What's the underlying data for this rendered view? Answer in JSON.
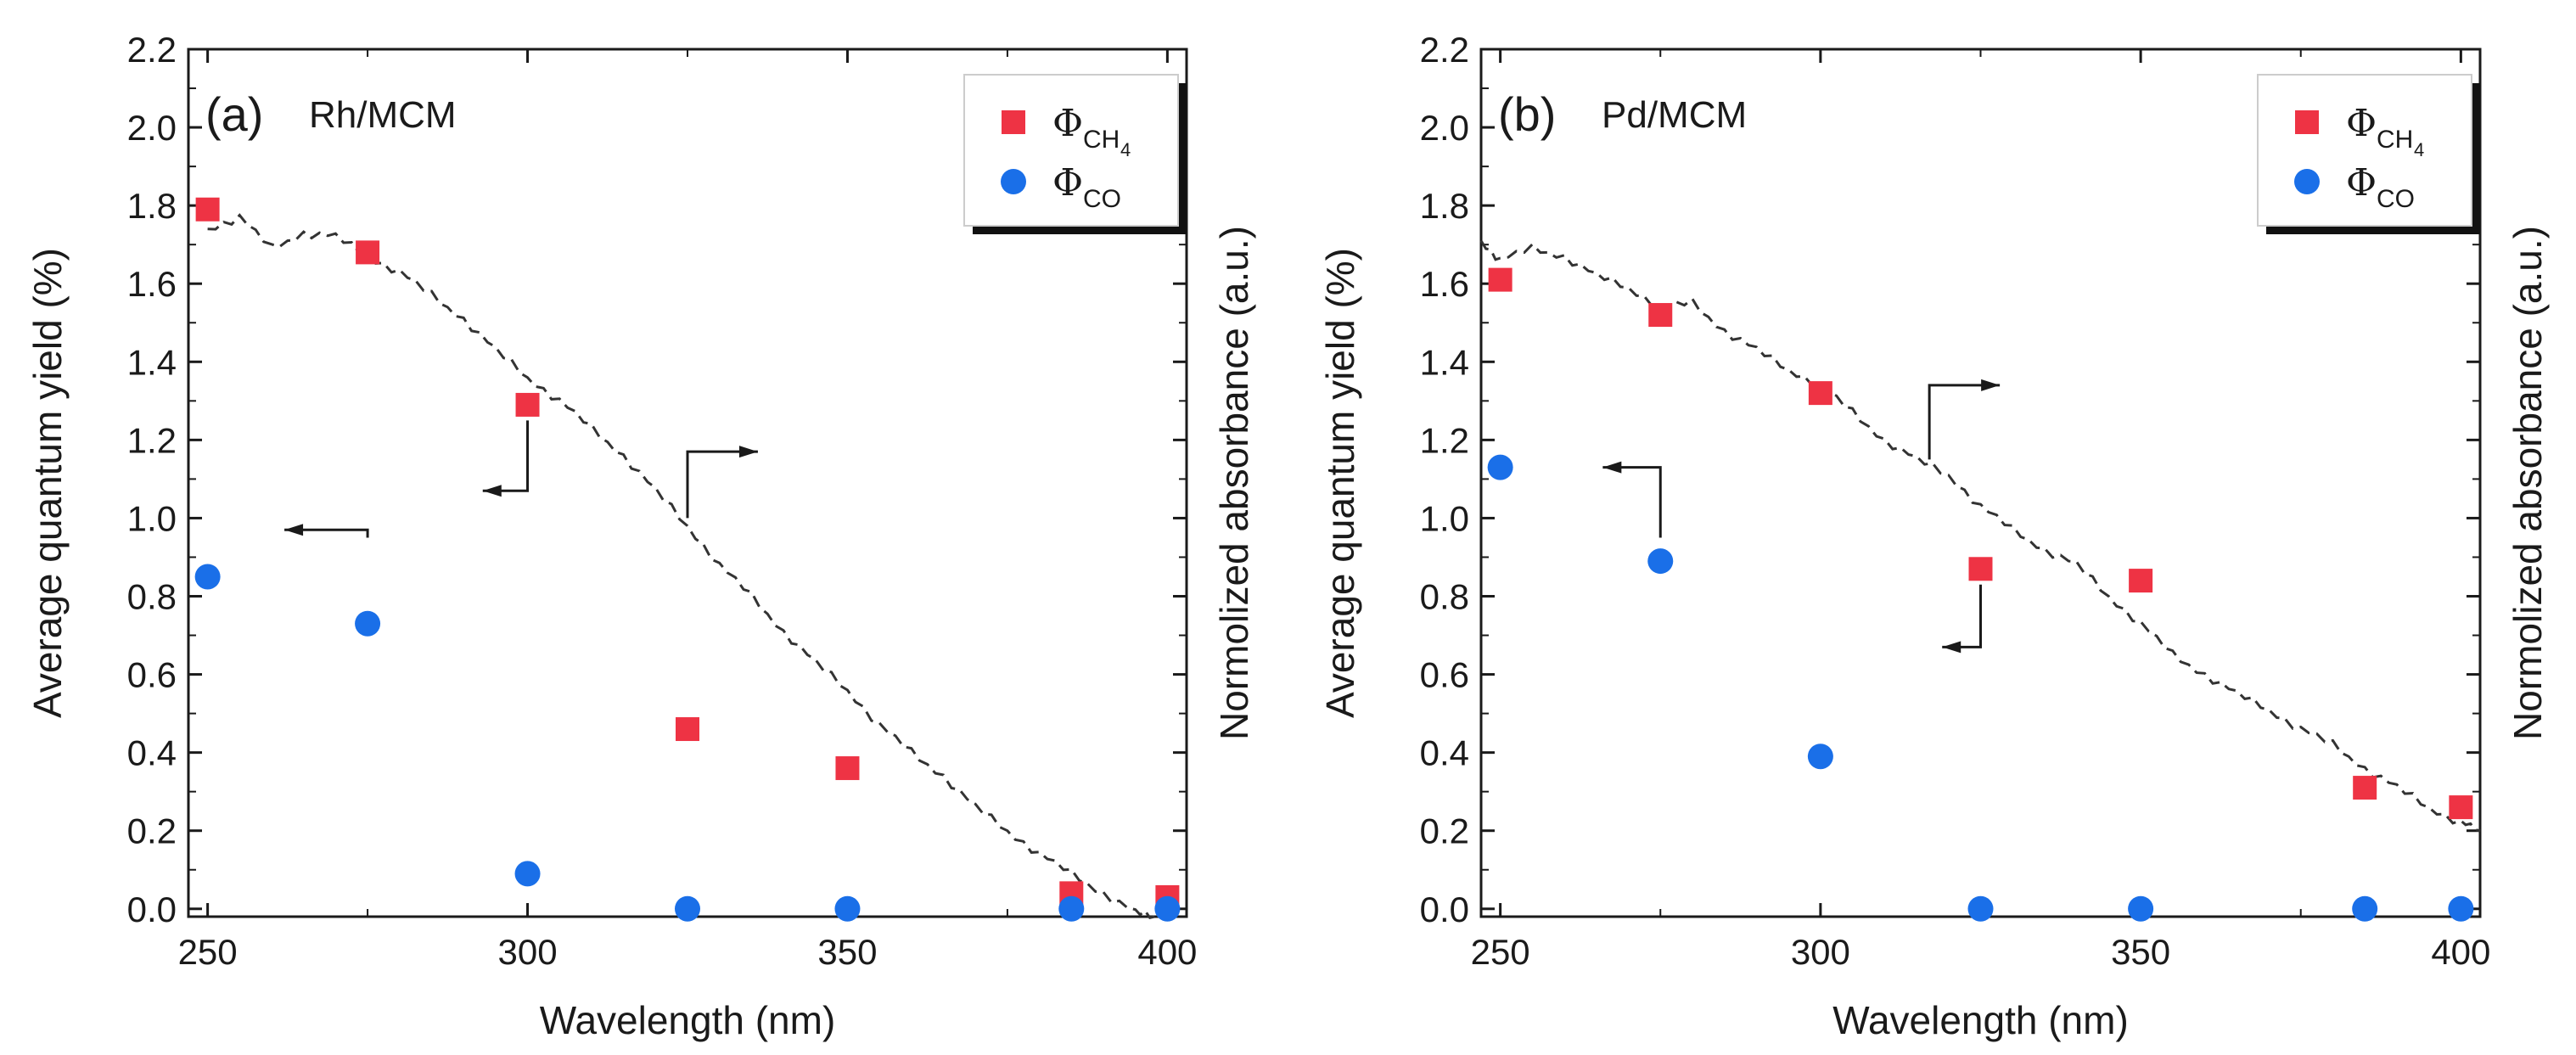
{
  "chart_data": [
    {
      "type": "scatter",
      "panel_label": "(a)",
      "panel_name": "Rh/MCM",
      "xlabel": "Wavelength (nm)",
      "ylabel": "Average quantum yield (%)",
      "y2label": "Normolized absorbance (a.u.)",
      "xlim": [
        247,
        403
      ],
      "ylim": [
        -0.02,
        2.2
      ],
      "xticks": [
        "250",
        "300",
        "350",
        "400"
      ],
      "xtick_values": [
        250,
        300,
        350,
        400
      ],
      "yticks": [
        "0.0",
        "0.2",
        "0.4",
        "0.6",
        "0.8",
        "1.0",
        "1.2",
        "1.4",
        "1.6",
        "1.8",
        "2.0",
        "2.2"
      ],
      "ytick_values": [
        0.0,
        0.2,
        0.4,
        0.6,
        0.8,
        1.0,
        1.2,
        1.4,
        1.6,
        1.8,
        2.0,
        2.2
      ],
      "legend": {
        "placement": "top-right",
        "symbol": "Φ",
        "sub_ch4_main": "CH",
        "sub_ch4_num": "4",
        "sub_co": "CO"
      },
      "series": [
        {
          "name": "Φ_CH4",
          "color": "#ee3344",
          "marker": "square",
          "x": [
            250,
            275,
            300,
            325,
            350,
            385,
            400
          ],
          "y": [
            1.79,
            1.68,
            1.29,
            0.46,
            0.36,
            0.04,
            0.03
          ]
        },
        {
          "name": "Φ_CO",
          "color": "#1a6fe8",
          "marker": "circle",
          "x": [
            250,
            275,
            300,
            325,
            350,
            385,
            400
          ],
          "y": [
            0.85,
            0.73,
            0.09,
            0.0,
            0.0,
            0.0,
            0.0
          ]
        },
        {
          "name": "Normalized absorbance",
          "color": "#333333",
          "marker": "dashed-line",
          "x": [
            250,
            255,
            260,
            265,
            270,
            275,
            280,
            285,
            290,
            295,
            300,
            305,
            310,
            315,
            320,
            325,
            330,
            335,
            340,
            345,
            350,
            355,
            360,
            365,
            370,
            375,
            380,
            385,
            390,
            395,
            398
          ],
          "y": [
            1.74,
            1.77,
            1.69,
            1.73,
            1.72,
            1.67,
            1.63,
            1.57,
            1.51,
            1.43,
            1.36,
            1.3,
            1.23,
            1.16,
            1.07,
            0.98,
            0.88,
            0.8,
            0.71,
            0.63,
            0.56,
            0.47,
            0.4,
            0.34,
            0.26,
            0.2,
            0.14,
            0.09,
            0.04,
            -0.01,
            -0.02
          ]
        }
      ],
      "annotations": [
        {
          "type": "arrow-left",
          "x": 275,
          "y": 0.95,
          "to_x": 262,
          "to_y": 0.97
        },
        {
          "type": "arrow-left",
          "x": 300,
          "y": 1.25,
          "to_x": 293,
          "to_y": 1.07
        },
        {
          "type": "arrow-right",
          "x": 325,
          "y": 1.0,
          "to_x": 336,
          "to_y": 1.17
        }
      ]
    },
    {
      "type": "scatter",
      "panel_label": "(b)",
      "panel_name": "Pd/MCM",
      "xlabel": "Wavelength (nm)",
      "ylabel": "Average quantum yield (%)",
      "y2label": "Normolized absorbance (a.u.)",
      "xlim": [
        247,
        403
      ],
      "ylim": [
        -0.02,
        2.2
      ],
      "xticks": [
        "250",
        "300",
        "350",
        "400"
      ],
      "xtick_values": [
        250,
        300,
        350,
        400
      ],
      "yticks": [
        "0.0",
        "0.2",
        "0.4",
        "0.6",
        "0.8",
        "1.0",
        "1.2",
        "1.4",
        "1.6",
        "1.8",
        "2.0",
        "2.2"
      ],
      "ytick_values": [
        0.0,
        0.2,
        0.4,
        0.6,
        0.8,
        1.0,
        1.2,
        1.4,
        1.6,
        1.8,
        2.0,
        2.2
      ],
      "legend": {
        "placement": "top-right",
        "symbol": "Φ",
        "sub_ch4_main": "CH",
        "sub_ch4_num": "4",
        "sub_co": "CO"
      },
      "series": [
        {
          "name": "Φ_CH4",
          "color": "#ee3344",
          "marker": "square",
          "x": [
            250,
            275,
            300,
            325,
            350,
            385,
            400
          ],
          "y": [
            1.61,
            1.52,
            1.32,
            0.87,
            0.84,
            0.31,
            0.26
          ]
        },
        {
          "name": "Φ_CO",
          "color": "#1a6fe8",
          "marker": "circle",
          "x": [
            250,
            275,
            300,
            325,
            350,
            385,
            400
          ],
          "y": [
            1.13,
            0.89,
            0.39,
            0.0,
            0.0,
            0.0,
            0.0
          ]
        },
        {
          "name": "Normalized absorbance",
          "color": "#333333",
          "marker": "dashed-line",
          "x": [
            247,
            250,
            255,
            260,
            265,
            270,
            275,
            280,
            285,
            290,
            295,
            300,
            305,
            310,
            315,
            320,
            325,
            330,
            335,
            340,
            345,
            350,
            355,
            360,
            365,
            370,
            375,
            380,
            385,
            390,
            395,
            400,
            403
          ],
          "y": [
            1.71,
            1.66,
            1.69,
            1.67,
            1.62,
            1.59,
            1.54,
            1.55,
            1.48,
            1.43,
            1.38,
            1.34,
            1.27,
            1.2,
            1.15,
            1.11,
            1.03,
            0.97,
            0.92,
            0.88,
            0.8,
            0.73,
            0.65,
            0.6,
            0.55,
            0.51,
            0.46,
            0.42,
            0.36,
            0.31,
            0.26,
            0.22,
            0.2
          ]
        }
      ],
      "annotations": [
        {
          "type": "arrow-left",
          "x": 275,
          "y": 0.95,
          "to_x": 266,
          "to_y": 1.13
        },
        {
          "type": "arrow-left",
          "x": 325,
          "y": 0.83,
          "to_x": 319,
          "to_y": 0.67
        },
        {
          "type": "arrow-right",
          "x": 317,
          "y": 1.15,
          "to_x": 328,
          "to_y": 1.34
        }
      ]
    }
  ]
}
